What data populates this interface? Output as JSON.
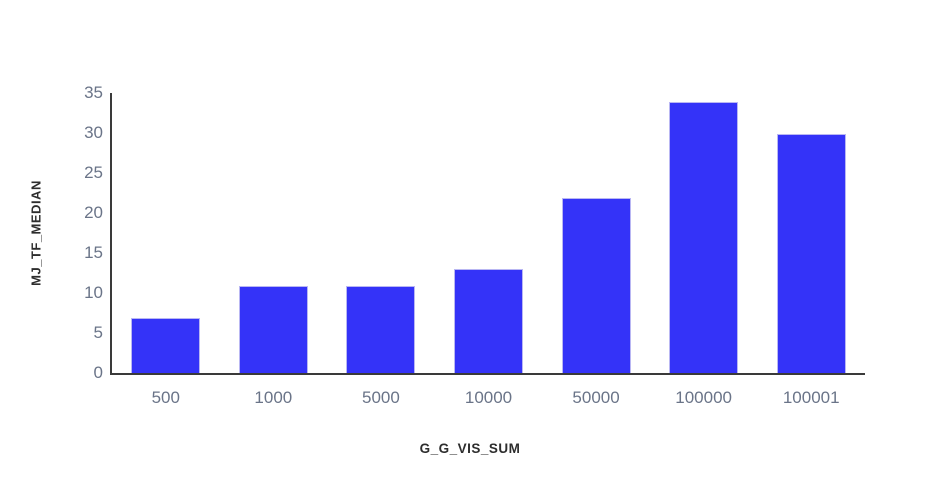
{
  "chart_data": {
    "type": "bar",
    "title": "",
    "xlabel": "G_G_VIS_SUM",
    "ylabel": "MJ_TF_MEDIAN",
    "categories": [
      "500",
      "1000",
      "5000",
      "10000",
      "50000",
      "100000",
      "100001"
    ],
    "values": [
      6.7,
      10.8,
      10.8,
      12.9,
      21.8,
      33.8,
      29.8
    ],
    "ylim": [
      0,
      35
    ],
    "yticks": [
      0,
      5,
      10,
      15,
      20,
      25,
      30,
      35
    ],
    "grid": false,
    "legend": false,
    "layout": {
      "bar_slot_fraction": 0.62
    },
    "colors": {
      "bar_fill": "#3433f8",
      "bar_border": "#b9b7f3",
      "axis_line": "#3a3a3a",
      "tick_label": "#6a7488",
      "axis_title": "#2d2d2d",
      "background": "#ffffff"
    }
  }
}
